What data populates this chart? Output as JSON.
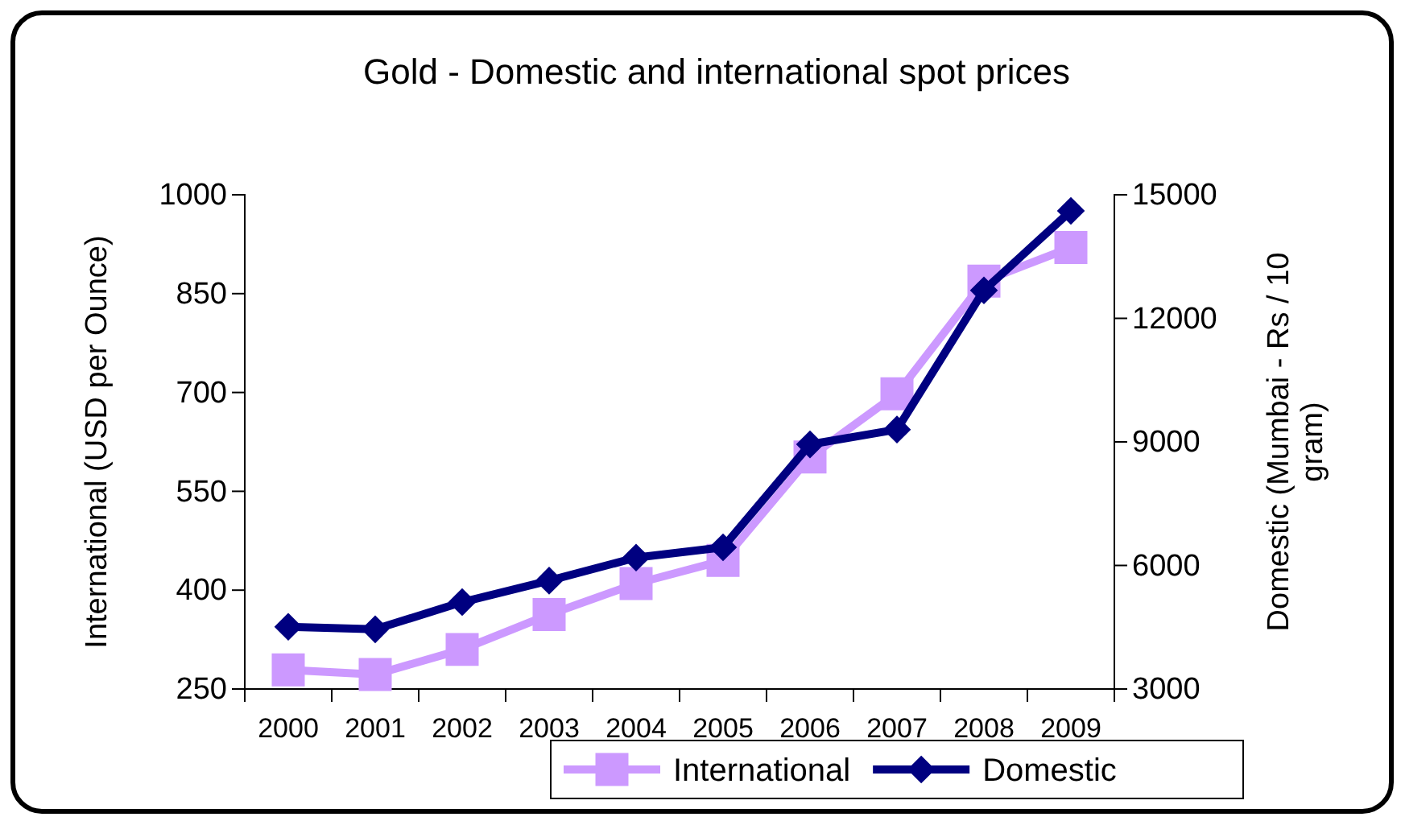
{
  "chart_data": {
    "type": "line",
    "title": "Gold - Domestic and international spot prices",
    "ylabel": "International (USD per Ounce)",
    "y2label": "Domestic (Mumbai - Rs / 10 gram)",
    "categories": [
      "2000",
      "2001",
      "2002",
      "2003",
      "2004",
      "2005",
      "2006",
      "2007",
      "2008",
      "2009"
    ],
    "series": [
      {
        "name": "International",
        "color": "#cc99ff",
        "marker": "square",
        "values": [
          279,
          272,
          310,
          363,
          410,
          445,
          602,
          698,
          869,
          920
        ]
      },
      {
        "name": "Domestic",
        "color": "#000080",
        "marker": "diamond",
        "axis": "y2",
        "values": [
          4510,
          4450,
          5110,
          5630,
          6190,
          6440,
          8940,
          9300,
          12680,
          14610
        ]
      }
    ],
    "ylim": [
      250,
      1000
    ],
    "yticks": [
      250,
      400,
      550,
      700,
      850,
      1000
    ],
    "y2lim": [
      3000,
      15000
    ],
    "y2ticks": [
      3000,
      6000,
      9000,
      12000,
      15000
    ],
    "legend": "bottom right",
    "grid": false
  }
}
